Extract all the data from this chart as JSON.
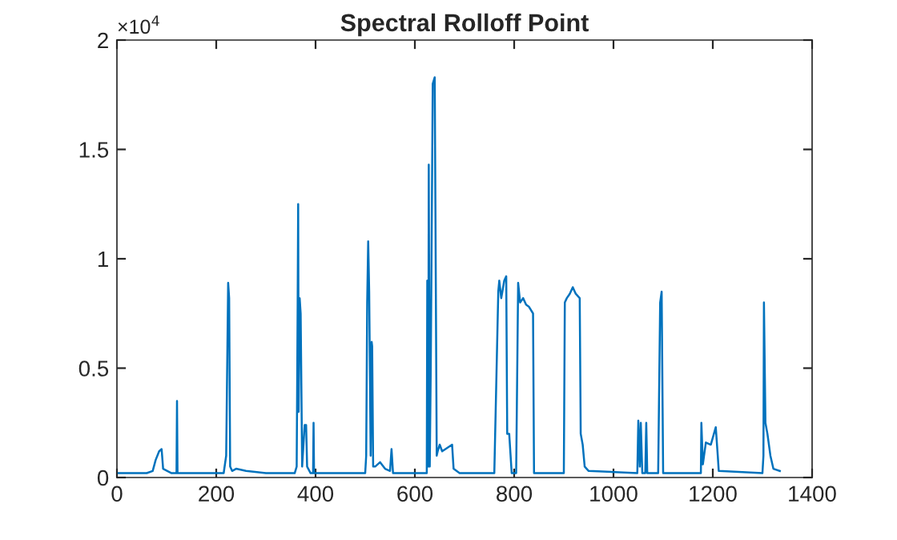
{
  "chart_data": {
    "type": "line",
    "title": "Spectral Rolloff Point",
    "annotations": [
      "×10$^{4}$"
    ],
    "xlim": [
      0,
      1400
    ],
    "xticks": [
      0,
      200,
      400,
      600,
      800,
      1000,
      1200,
      1400
    ],
    "ylim": [
      0,
      2
    ],
    "yticks": [
      0,
      0.5,
      1,
      1.5,
      2
    ],
    "grid": false,
    "legend": false,
    "marker": "none",
    "line_style": "solid",
    "series": [
      {
        "color": "#0072bd",
        "x": [
          0,
          60,
          72,
          78,
          85,
          90,
          93,
          110,
          120,
          121,
          122,
          215,
          220,
          224,
          226,
          228,
          232,
          240,
          260,
          300,
          358,
          362,
          364,
          365,
          366,
          368,
          370,
          373,
          378,
          381,
          383,
          390,
          395,
          396,
          397,
          420,
          500,
          502,
          504,
          506,
          508,
          511,
          513,
          514,
          516,
          520,
          530,
          540,
          550,
          553,
          556,
          600,
          624,
          625,
          627,
          628,
          630,
          632,
          636,
          640,
          644,
          646,
          650,
          655,
          675,
          678,
          690,
          760,
          768,
          770,
          774,
          780,
          784,
          786,
          790,
          795,
          804,
          808,
          812,
          818,
          824,
          830,
          838,
          840,
          900,
          902,
          906,
          912,
          918,
          924,
          932,
          934,
          938,
          942,
          950,
          1048,
          1050,
          1053,
          1055,
          1058,
          1064,
          1066,
          1068,
          1090,
          1094,
          1097,
          1100,
          1176,
          1177,
          1180,
          1186,
          1196,
          1206,
          1210,
          1212,
          1300,
          1302,
          1303,
          1306,
          1310,
          1316,
          1322,
          1335
        ],
        "values": [
          0.02,
          0.02,
          0.03,
          0.08,
          0.12,
          0.13,
          0.04,
          0.02,
          0.02,
          0.35,
          0.02,
          0.02,
          0.1,
          0.89,
          0.82,
          0.05,
          0.03,
          0.04,
          0.03,
          0.02,
          0.02,
          0.05,
          0.8,
          1.25,
          0.3,
          0.82,
          0.75,
          0.05,
          0.24,
          0.24,
          0.05,
          0.02,
          0.02,
          0.25,
          0.02,
          0.02,
          0.02,
          0.1,
          0.8,
          1.08,
          0.85,
          0.1,
          0.62,
          0.6,
          0.05,
          0.05,
          0.07,
          0.04,
          0.03,
          0.13,
          0.02,
          0.02,
          0.02,
          0.9,
          0.05,
          1.43,
          0.05,
          0.5,
          1.8,
          1.83,
          0.1,
          0.12,
          0.15,
          0.12,
          0.15,
          0.04,
          0.02,
          0.02,
          0.85,
          0.9,
          0.82,
          0.9,
          0.92,
          0.2,
          0.2,
          0.02,
          0.02,
          0.89,
          0.8,
          0.82,
          0.79,
          0.78,
          0.75,
          0.02,
          0.02,
          0.8,
          0.82,
          0.84,
          0.87,
          0.84,
          0.82,
          0.2,
          0.15,
          0.05,
          0.03,
          0.02,
          0.26,
          0.05,
          0.25,
          0.02,
          0.02,
          0.25,
          0.02,
          0.02,
          0.8,
          0.85,
          0.02,
          0.02,
          0.25,
          0.06,
          0.16,
          0.15,
          0.23,
          0.1,
          0.03,
          0.02,
          0.1,
          0.8,
          0.25,
          0.2,
          0.1,
          0.04,
          0.03
        ]
      }
    ]
  }
}
